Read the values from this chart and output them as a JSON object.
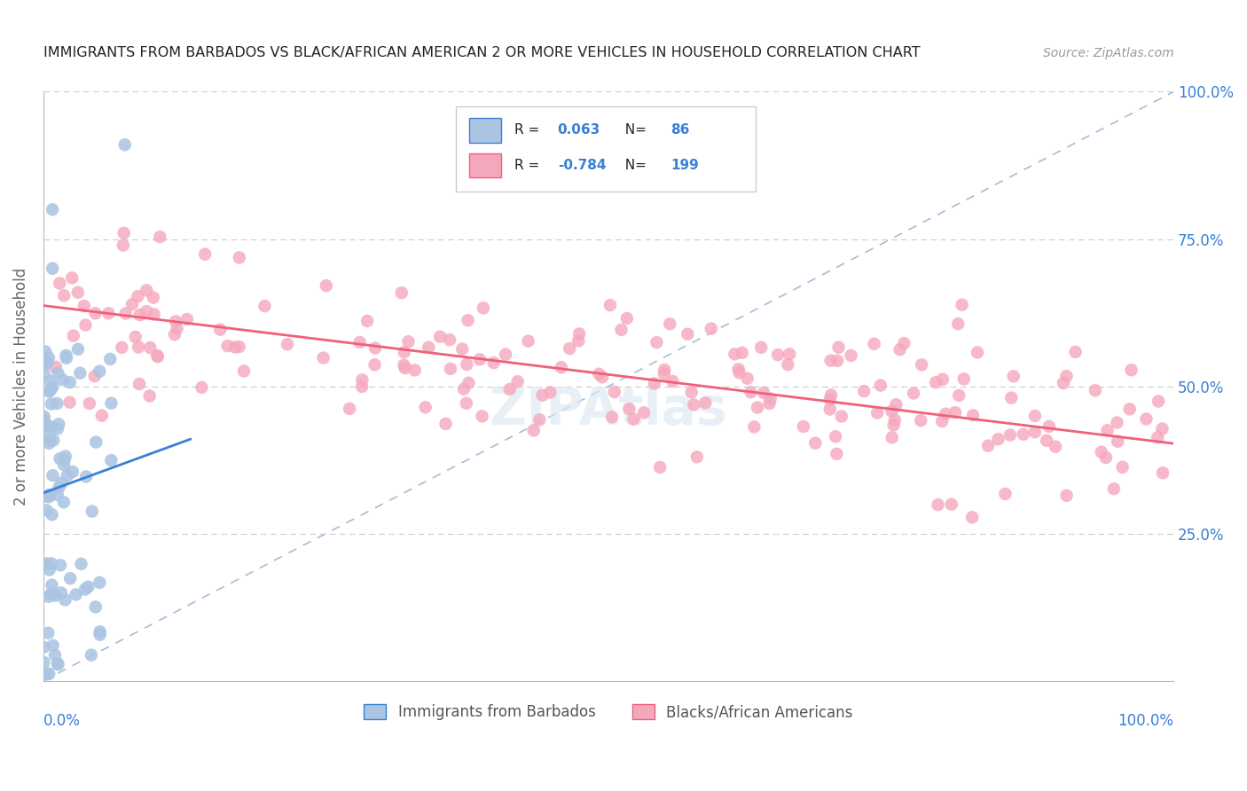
{
  "title": "IMMIGRANTS FROM BARBADOS VS BLACK/AFRICAN AMERICAN 2 OR MORE VEHICLES IN HOUSEHOLD CORRELATION CHART",
  "source": "Source: ZipAtlas.com",
  "ylabel": "2 or more Vehicles in Household",
  "legend_label1": "Immigrants from Barbados",
  "legend_label2": "Blacks/African Americans",
  "R1": 0.063,
  "N1": 86,
  "R2": -0.784,
  "N2": 199,
  "color_blue": "#aac4e2",
  "color_pink": "#f5a8bc",
  "line_blue": "#3a7fd5",
  "line_pink": "#f0607a",
  "line_diag_color": "#a8bcd8",
  "title_color": "#222222",
  "source_color": "#999999",
  "axis_label_color": "#3a7fd5",
  "legend_r_color": "#3a7fd5",
  "background": "#ffffff",
  "grid_color": "#cccccc",
  "seed": 42
}
